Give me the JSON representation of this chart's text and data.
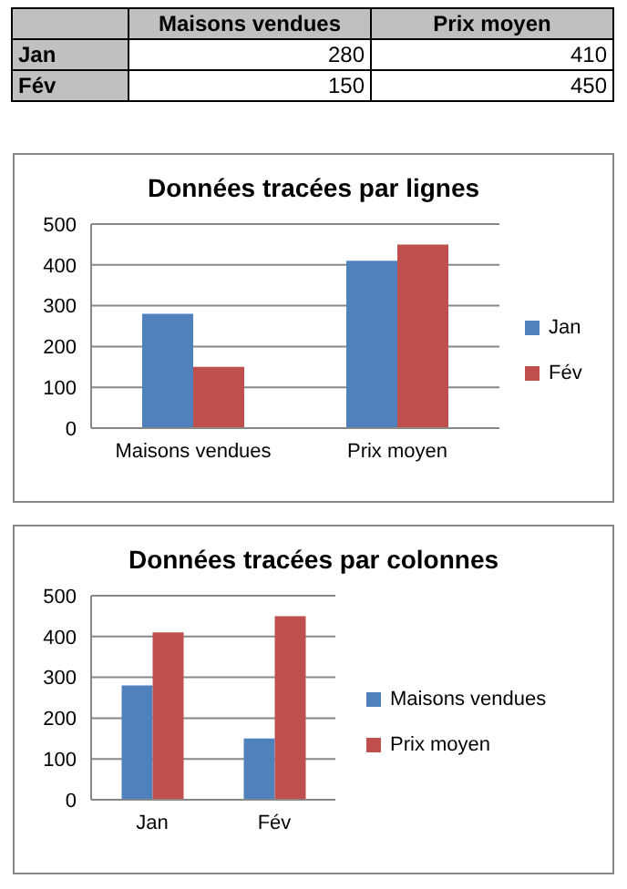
{
  "chart_data": [
    {
      "type": "heatmap",
      "categories": [
        "Maisons vendues",
        "Prix moyen"
      ],
      "y_categories": [
        "Jan",
        "Fév"
      ],
      "cells": [
        [
          280,
          410
        ],
        [
          150,
          450
        ]
      ],
      "data_labels": true
    },
    {
      "type": "bar",
      "title": "Données tracées par lignes",
      "categories": [
        "Maisons vendues",
        "Prix moyen"
      ],
      "series": [
        {
          "name": "Jan",
          "color": "#4f81bd",
          "values": [
            280,
            410
          ]
        },
        {
          "name": "Fév",
          "color": "#c0504d",
          "values": [
            150,
            450
          ]
        }
      ],
      "ylim": [
        0,
        500
      ],
      "yticks": [
        0,
        100,
        200,
        300,
        400,
        500
      ],
      "grid": "y",
      "legend": "right"
    },
    {
      "type": "bar",
      "title": "Données tracées par colonnes",
      "categories": [
        "Jan",
        "Fév"
      ],
      "series": [
        {
          "name": "Maisons vendues",
          "color": "#4f81bd",
          "values": [
            280,
            150
          ]
        },
        {
          "name": "Prix moyen",
          "color": "#c0504d",
          "values": [
            410,
            450
          ]
        }
      ],
      "ylim": [
        0,
        500
      ],
      "yticks": [
        0,
        100,
        200,
        300,
        400,
        500
      ],
      "grid": "y",
      "legend": "right"
    }
  ]
}
